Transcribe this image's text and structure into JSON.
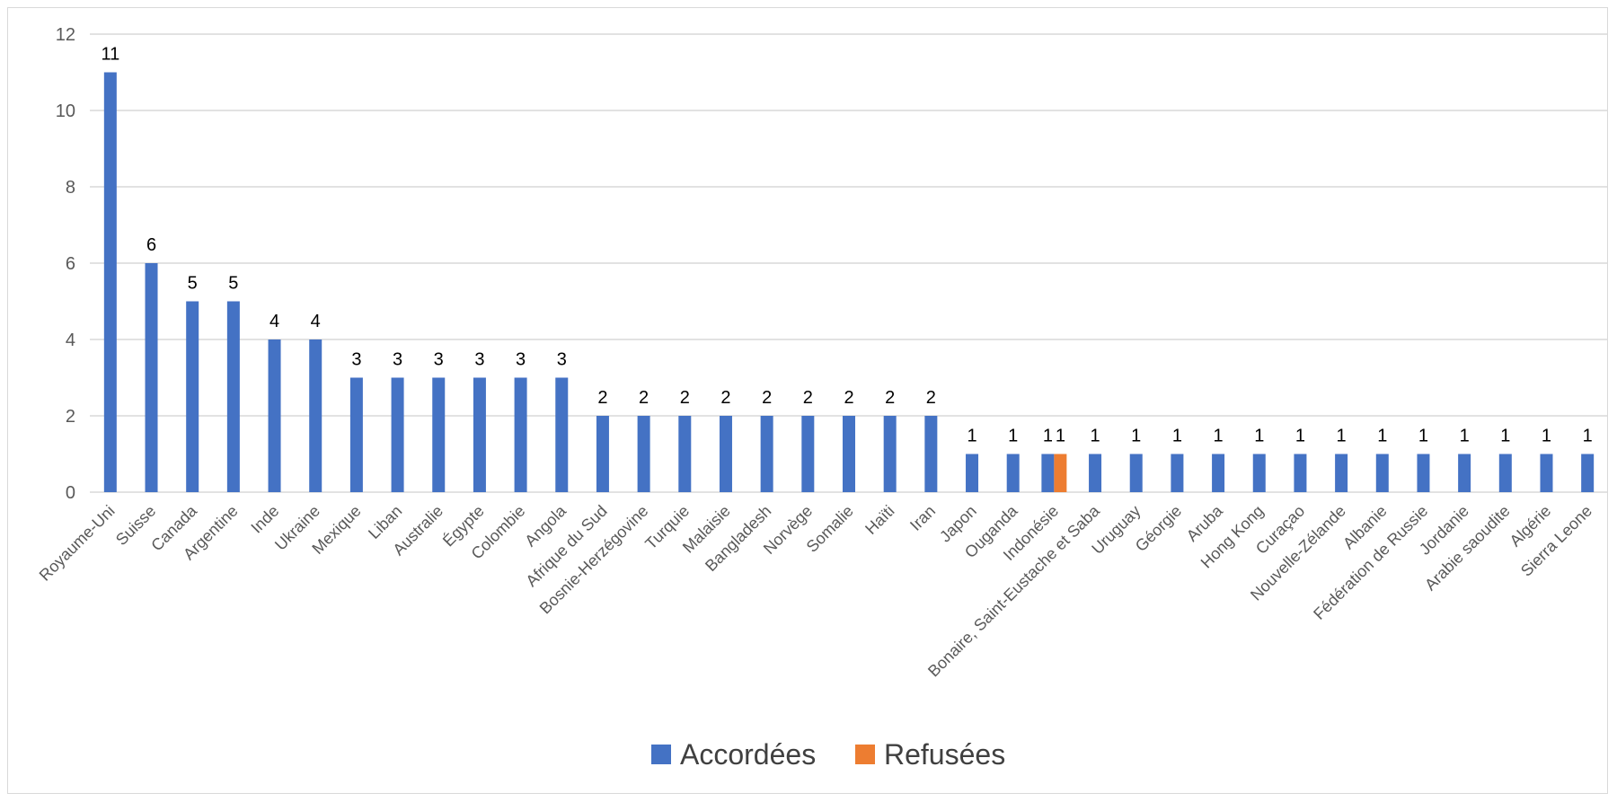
{
  "chart_data": {
    "type": "bar",
    "categories": [
      "Royaume-Uni",
      "Suisse",
      "Canada",
      "Argentine",
      "Inde",
      "Ukraine",
      "Mexique",
      "Liban",
      "Australie",
      "Égypte",
      "Colombie",
      "Angola",
      "Afrique du Sud",
      "Bosnie-Herzégovine",
      "Turquie",
      "Malaisie",
      "Bangladesh",
      "Norvège",
      "Somalie",
      "Haïti",
      "Iran",
      "Japon",
      "Ouganda",
      "Indonésie",
      "Bonaire, Saint-Eustache et Saba",
      "Uruguay",
      "Géorgie",
      "Aruba",
      "Hong Kong",
      "Curaçao",
      "Nouvelle-Zélande",
      "Albanie",
      "Fédération de Russie",
      "Jordanie",
      "Arabie saoudite",
      "Algérie",
      "Sierra Leone"
    ],
    "series": [
      {
        "name": "Accordées",
        "color": "#4472c4",
        "values": [
          11,
          6,
          5,
          5,
          4,
          4,
          3,
          3,
          3,
          3,
          3,
          3,
          2,
          2,
          2,
          2,
          2,
          2,
          2,
          2,
          2,
          1,
          1,
          1,
          1,
          1,
          1,
          1,
          1,
          1,
          1,
          1,
          1,
          1,
          1,
          1,
          1
        ]
      },
      {
        "name": "Refusées",
        "color": "#ed7d31",
        "values": [
          null,
          null,
          null,
          null,
          null,
          null,
          null,
          null,
          null,
          null,
          null,
          null,
          null,
          null,
          null,
          null,
          null,
          null,
          null,
          null,
          null,
          null,
          null,
          1,
          null,
          null,
          null,
          null,
          null,
          null,
          null,
          null,
          null,
          null,
          null,
          null,
          null
        ]
      }
    ],
    "yticks": [
      0,
      2,
      4,
      6,
      8,
      10,
      12
    ],
    "ylim": [
      0,
      12
    ],
    "grid": true,
    "legend": "bottom-center",
    "gridColor": "#d9d9d9"
  }
}
